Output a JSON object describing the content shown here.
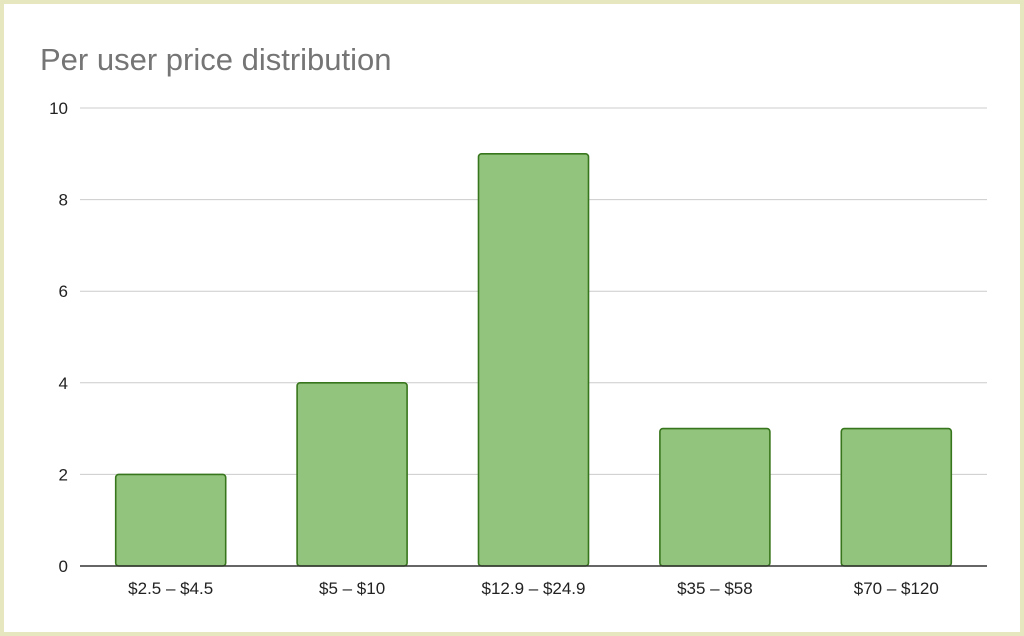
{
  "chart_data": {
    "type": "bar",
    "title": "Per user price distribution",
    "xlabel": "",
    "ylabel": "",
    "categories": [
      "$2.5 – $4.5",
      "$5 – $10",
      "$12.9 – $24.9",
      "$35 – $58",
      "$70 – $120"
    ],
    "values": [
      2,
      4,
      9,
      3,
      3
    ],
    "ylim": [
      0,
      10
    ],
    "yticks": [
      "0",
      "2",
      "4",
      "6",
      "8",
      "10"
    ],
    "grid": true,
    "legend": "none",
    "colors": {
      "bar_fill": "#93c47d",
      "bar_stroke": "#38761d",
      "gridline": "#cccccc",
      "axis": "#333333",
      "title": "#757575",
      "border": "#e6e6bf"
    }
  }
}
